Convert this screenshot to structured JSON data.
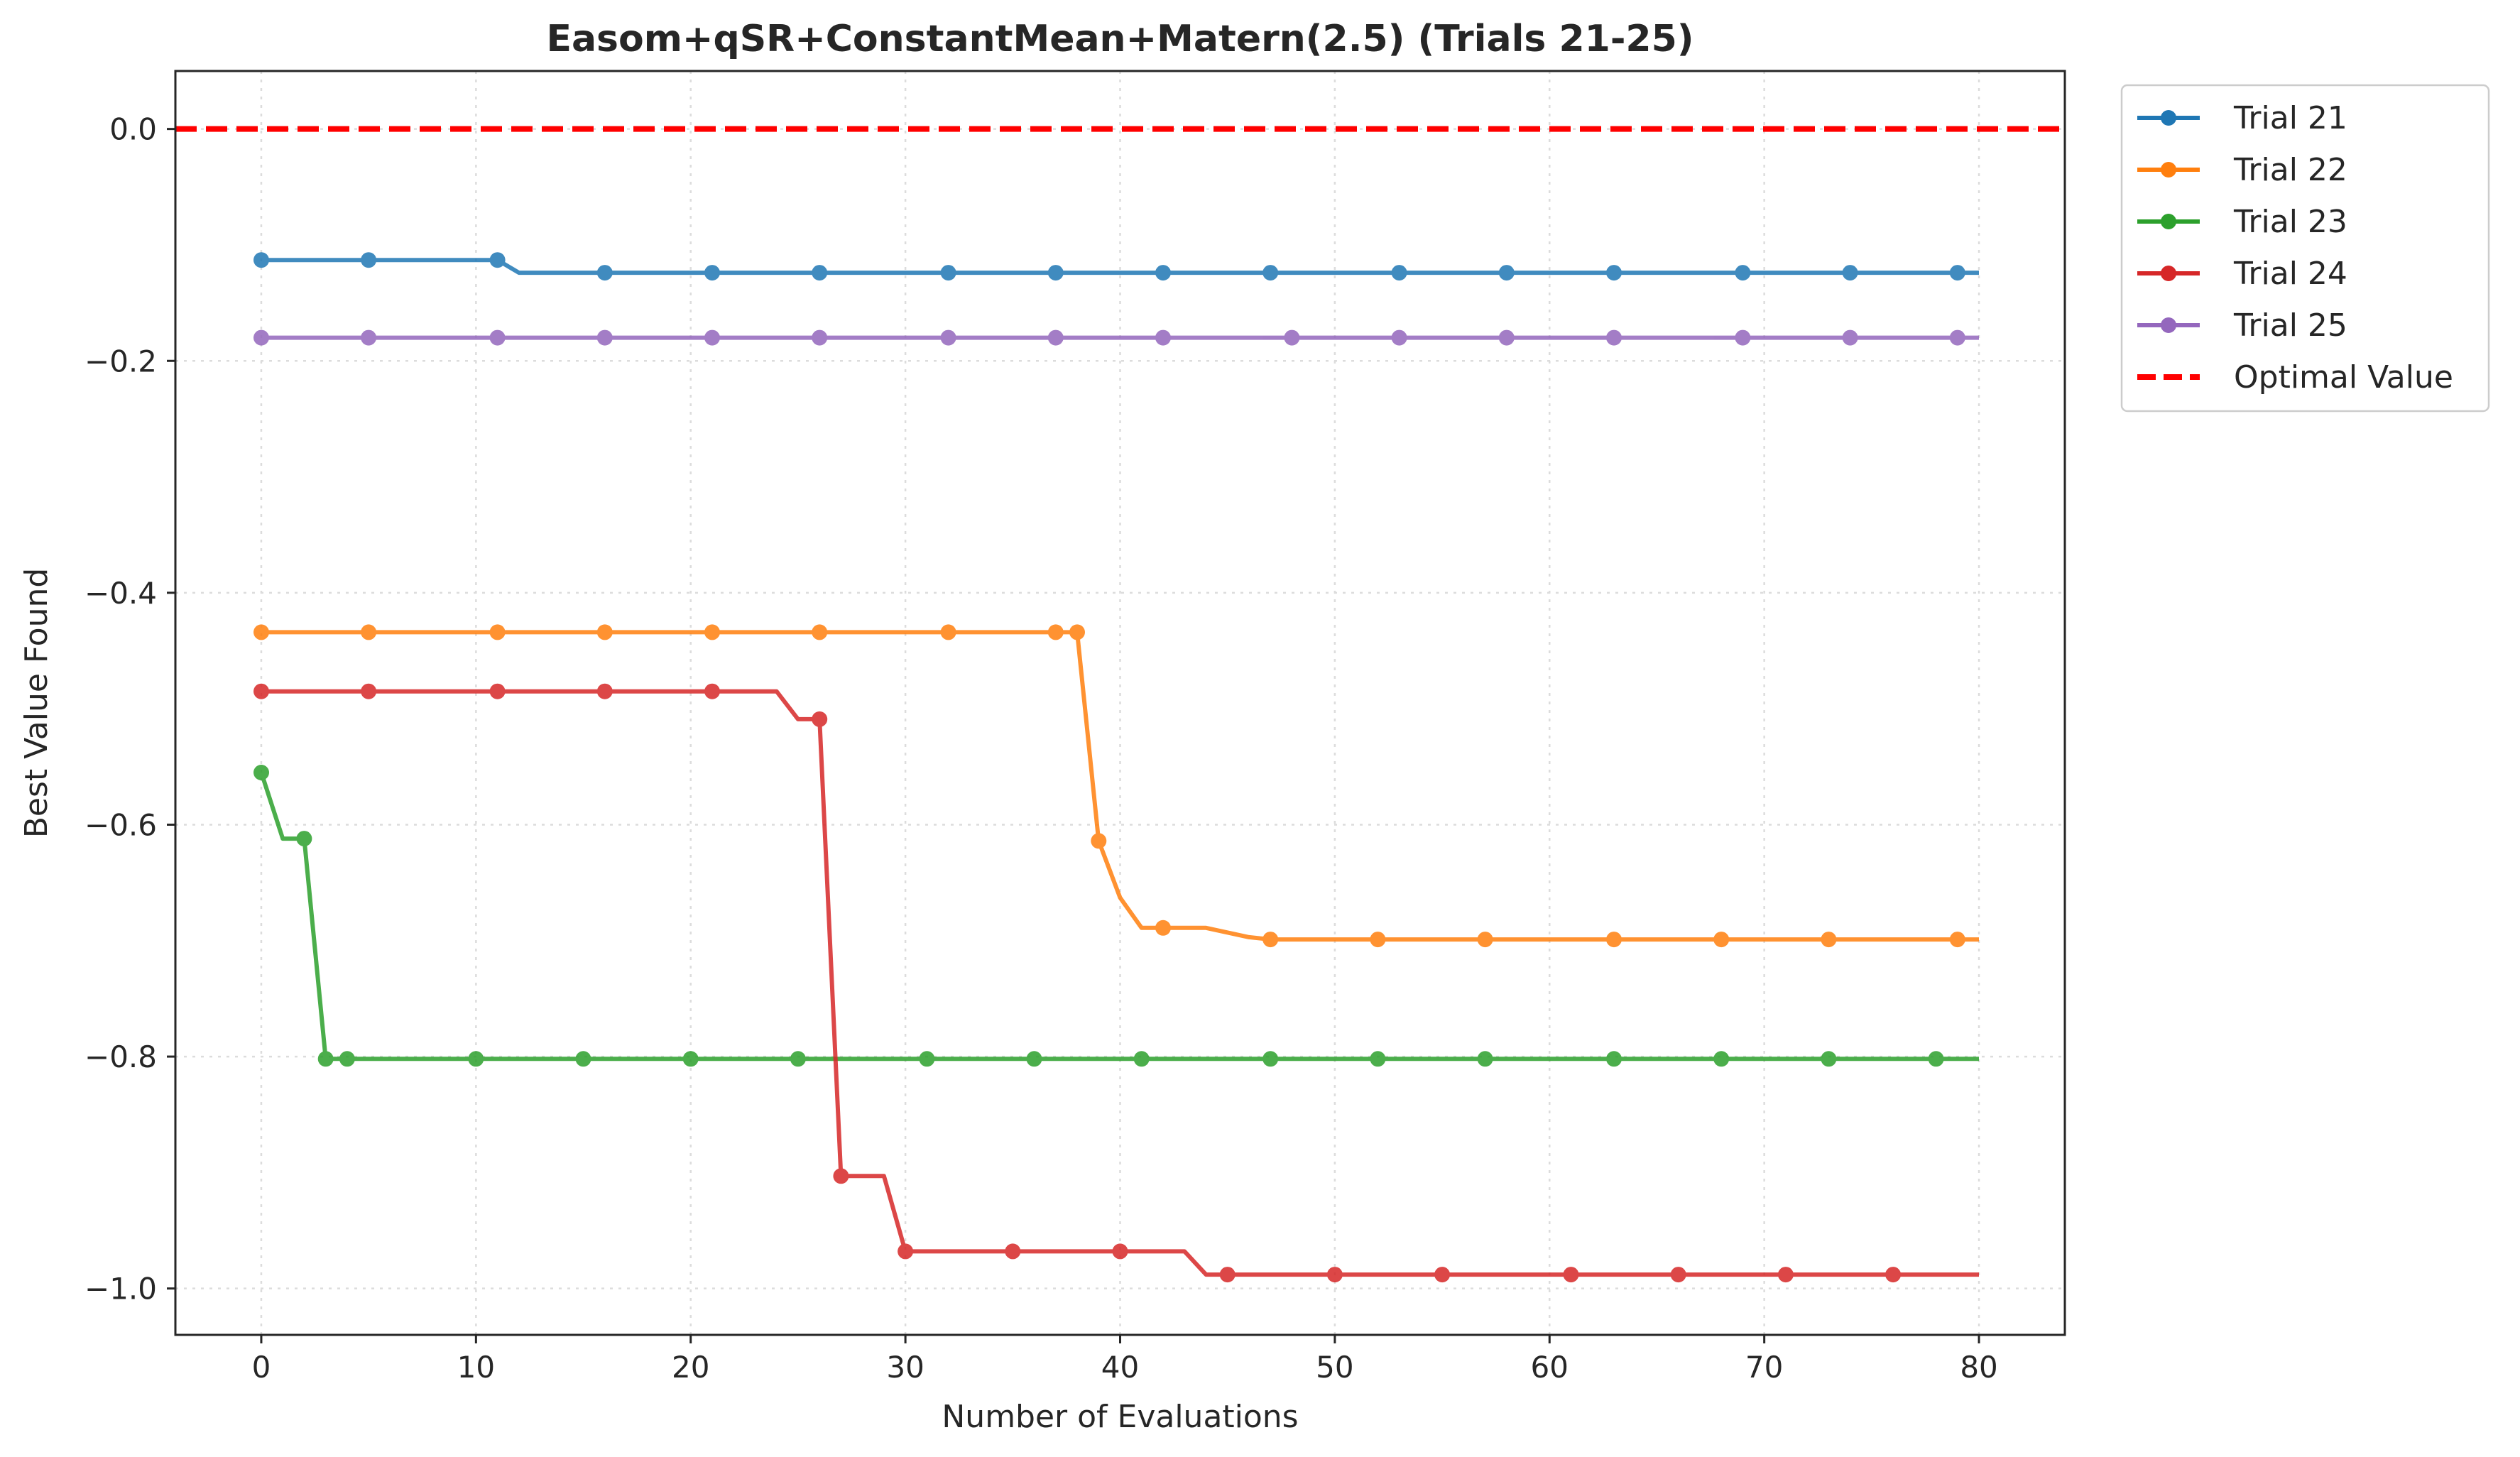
{
  "chart_data": {
    "type": "line",
    "title": "Easom+qSR+ConstantMean+Matern(2.5) (Trials 21-25)",
    "xlabel": "Number of Evaluations",
    "ylabel": "Best Value Found",
    "xlim": [
      -4,
      84
    ],
    "ylim": [
      -1.04,
      0.05
    ],
    "xticks": [
      0,
      10,
      20,
      30,
      40,
      50,
      60,
      70,
      80
    ],
    "xtick_labels": [
      "0",
      "10",
      "20",
      "30",
      "40",
      "50",
      "60",
      "70",
      "80"
    ],
    "yticks": [
      0.0,
      -0.2,
      -0.4,
      -0.6,
      -0.8,
      -1.0
    ],
    "ytick_labels": [
      "0.0",
      "−0.2",
      "−0.4",
      "−0.6",
      "−0.8",
      "−1.0"
    ],
    "grid": true,
    "legend_position": "outside-top-right",
    "series": [
      {
        "name": "Trial 21",
        "color": "#1f77b4",
        "line": [
          [
            0,
            -0.113
          ],
          [
            11,
            -0.113
          ],
          [
            12,
            -0.124
          ],
          [
            80,
            -0.124
          ]
        ],
        "markers": [
          [
            0,
            -0.113
          ],
          [
            5,
            -0.113
          ],
          [
            11,
            -0.113
          ],
          [
            16,
            -0.124
          ],
          [
            21,
            -0.124
          ],
          [
            26,
            -0.124
          ],
          [
            32,
            -0.124
          ],
          [
            37,
            -0.124
          ],
          [
            42,
            -0.124
          ],
          [
            47,
            -0.124
          ],
          [
            53,
            -0.124
          ],
          [
            58,
            -0.124
          ],
          [
            63,
            -0.124
          ],
          [
            69,
            -0.124
          ],
          [
            74,
            -0.124
          ],
          [
            79,
            -0.124
          ]
        ]
      },
      {
        "name": "Trial 22",
        "color": "#ff7f0e",
        "line": [
          [
            0,
            -0.434
          ],
          [
            38,
            -0.434
          ],
          [
            39,
            -0.614
          ],
          [
            40,
            -0.663
          ],
          [
            41,
            -0.689
          ],
          [
            43,
            -0.689
          ],
          [
            44,
            -0.689
          ],
          [
            46,
            -0.697
          ],
          [
            47,
            -0.699
          ],
          [
            80,
            -0.699
          ]
        ],
        "markers": [
          [
            0,
            -0.434
          ],
          [
            5,
            -0.434
          ],
          [
            11,
            -0.434
          ],
          [
            16,
            -0.434
          ],
          [
            21,
            -0.434
          ],
          [
            26,
            -0.434
          ],
          [
            32,
            -0.434
          ],
          [
            37,
            -0.434
          ],
          [
            38,
            -0.434
          ],
          [
            39,
            -0.614
          ],
          [
            42,
            -0.689
          ],
          [
            47,
            -0.699
          ],
          [
            52,
            -0.699
          ],
          [
            57,
            -0.699
          ],
          [
            63,
            -0.699
          ],
          [
            68,
            -0.699
          ],
          [
            73,
            -0.699
          ],
          [
            79,
            -0.699
          ]
        ]
      },
      {
        "name": "Trial 23",
        "color": "#2ca02c",
        "line": [
          [
            0,
            -0.555
          ],
          [
            1,
            -0.612
          ],
          [
            2,
            -0.612
          ],
          [
            3,
            -0.802
          ],
          [
            80,
            -0.802
          ]
        ],
        "markers": [
          [
            0,
            -0.555
          ],
          [
            2,
            -0.612
          ],
          [
            3,
            -0.802
          ],
          [
            4,
            -0.802
          ],
          [
            10,
            -0.802
          ],
          [
            15,
            -0.802
          ],
          [
            20,
            -0.802
          ],
          [
            25,
            -0.802
          ],
          [
            31,
            -0.802
          ],
          [
            36,
            -0.802
          ],
          [
            41,
            -0.802
          ],
          [
            47,
            -0.802
          ],
          [
            52,
            -0.802
          ],
          [
            57,
            -0.802
          ],
          [
            63,
            -0.802
          ],
          [
            68,
            -0.802
          ],
          [
            73,
            -0.802
          ],
          [
            78,
            -0.802
          ]
        ]
      },
      {
        "name": "Trial 24",
        "color": "#d62728",
        "line": [
          [
            0,
            -0.485
          ],
          [
            24,
            -0.485
          ],
          [
            25,
            -0.509
          ],
          [
            26,
            -0.509
          ],
          [
            27,
            -0.903
          ],
          [
            29,
            -0.903
          ],
          [
            30,
            -0.968
          ],
          [
            43,
            -0.968
          ],
          [
            44,
            -0.988
          ],
          [
            80,
            -0.988
          ]
        ],
        "markers": [
          [
            0,
            -0.485
          ],
          [
            5,
            -0.485
          ],
          [
            11,
            -0.485
          ],
          [
            16,
            -0.485
          ],
          [
            21,
            -0.485
          ],
          [
            26,
            -0.509
          ],
          [
            27,
            -0.903
          ],
          [
            30,
            -0.968
          ],
          [
            35,
            -0.968
          ],
          [
            40,
            -0.968
          ],
          [
            45,
            -0.988
          ],
          [
            50,
            -0.988
          ],
          [
            55,
            -0.988
          ],
          [
            61,
            -0.988
          ],
          [
            66,
            -0.988
          ],
          [
            71,
            -0.988
          ],
          [
            76,
            -0.988
          ]
        ]
      },
      {
        "name": "Trial 25",
        "color": "#9467bd",
        "line": [
          [
            0,
            -0.18
          ],
          [
            80,
            -0.18
          ]
        ],
        "markers": [
          [
            0,
            -0.18
          ],
          [
            5,
            -0.18
          ],
          [
            11,
            -0.18
          ],
          [
            16,
            -0.18
          ],
          [
            21,
            -0.18
          ],
          [
            26,
            -0.18
          ],
          [
            32,
            -0.18
          ],
          [
            37,
            -0.18
          ],
          [
            42,
            -0.18
          ],
          [
            48,
            -0.18
          ],
          [
            53,
            -0.18
          ],
          [
            58,
            -0.18
          ],
          [
            63,
            -0.18
          ],
          [
            69,
            -0.18
          ],
          [
            74,
            -0.18
          ],
          [
            79,
            -0.18
          ]
        ]
      }
    ],
    "reference_line": {
      "name": "Optimal Value",
      "y": 0.0,
      "color": "#ff0000",
      "style": "dashed"
    }
  }
}
